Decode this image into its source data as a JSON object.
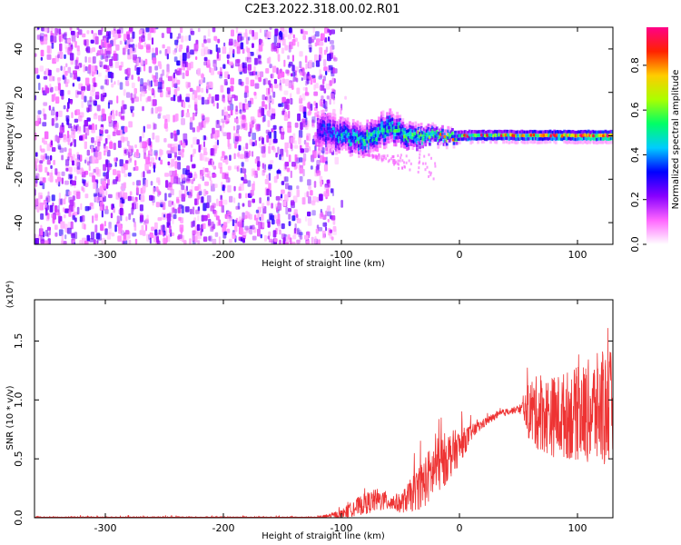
{
  "title": "C2E3.2022.318.00.02.R01",
  "chart_data": [
    {
      "type": "heatmap",
      "xlabel": "Height of straight line (km)",
      "ylabel": "Frequency (Hz)",
      "xlim": [
        -360,
        130
      ],
      "ylim": [
        -50,
        50
      ],
      "x_ticks": [
        -300,
        -200,
        -100,
        0,
        100
      ],
      "y_ticks": [
        -40,
        -20,
        0,
        20,
        40
      ],
      "colorbar": {
        "label": "Normalized spectral amplitude",
        "range": [
          0,
          0.97
        ],
        "ticks": [
          0.0,
          0.2,
          0.4,
          0.6,
          0.8
        ],
        "colors": [
          "#ffffff",
          "#ff66ff",
          "#8800ff",
          "#0000ff",
          "#00ccff",
          "#00ff66",
          "#aaff00",
          "#ffcc00",
          "#ff2200",
          "#ff0088"
        ]
      },
      "noise_region": {
        "x_range": [
          -360,
          -105
        ],
        "y_range": [
          -50,
          50
        ],
        "amplitude": [
          0.05,
          0.3
        ]
      },
      "ridge": [
        {
          "x": -120,
          "y": 2,
          "amp": 0.3,
          "width": 10
        },
        {
          "x": -100,
          "y": 0,
          "amp": 0.45,
          "width": 8
        },
        {
          "x": -80,
          "y": -2,
          "amp": 0.5,
          "width": 8
        },
        {
          "x": -60,
          "y": 4,
          "amp": 0.5,
          "width": 8
        },
        {
          "x": -40,
          "y": -1,
          "amp": 0.55,
          "width": 6
        },
        {
          "x": -20,
          "y": 0,
          "amp": 0.6,
          "width": 4
        },
        {
          "x": 0,
          "y": 0,
          "amp": 0.55,
          "width": 3
        },
        {
          "x": 50,
          "y": 0,
          "amp": 0.65,
          "width": 3
        },
        {
          "x": 100,
          "y": 0,
          "amp": 0.75,
          "width": 3
        },
        {
          "x": 125,
          "y": 0,
          "amp": 0.8,
          "width": 3
        }
      ]
    },
    {
      "type": "line",
      "xlabel": "Height of straight line (km)",
      "ylabel": "SNR (10 * v/v)",
      "y_multiplier": "(x10⁴)",
      "xlim": [
        -360,
        130
      ],
      "ylim": [
        0,
        1.85
      ],
      "x_ticks": [
        -300,
        -200,
        -100,
        0,
        100
      ],
      "y_ticks": [
        0.0,
        0.5,
        1.0,
        1.5
      ],
      "line_color": "#ee3333",
      "envelope": {
        "x": [
          -360,
          -120,
          -100,
          -90,
          -80,
          -70,
          -60,
          -50,
          -40,
          -30,
          -20,
          -10,
          0,
          10,
          20,
          30,
          40,
          50,
          55,
          60,
          80,
          100,
          110,
          120,
          130
        ],
        "base": [
          0.0,
          0.0,
          0.03,
          0.08,
          0.12,
          0.15,
          0.14,
          0.12,
          0.2,
          0.3,
          0.42,
          0.52,
          0.6,
          0.72,
          0.8,
          0.86,
          0.9,
          0.92,
          0.92,
          0.9,
          0.86,
          0.88,
          0.9,
          0.92,
          0.92
        ],
        "amp": [
          0.01,
          0.01,
          0.04,
          0.07,
          0.09,
          0.1,
          0.08,
          0.08,
          0.15,
          0.22,
          0.25,
          0.22,
          0.15,
          0.07,
          0.04,
          0.03,
          0.03,
          0.03,
          0.1,
          0.3,
          0.35,
          0.4,
          0.45,
          0.5,
          0.5
        ]
      }
    }
  ]
}
